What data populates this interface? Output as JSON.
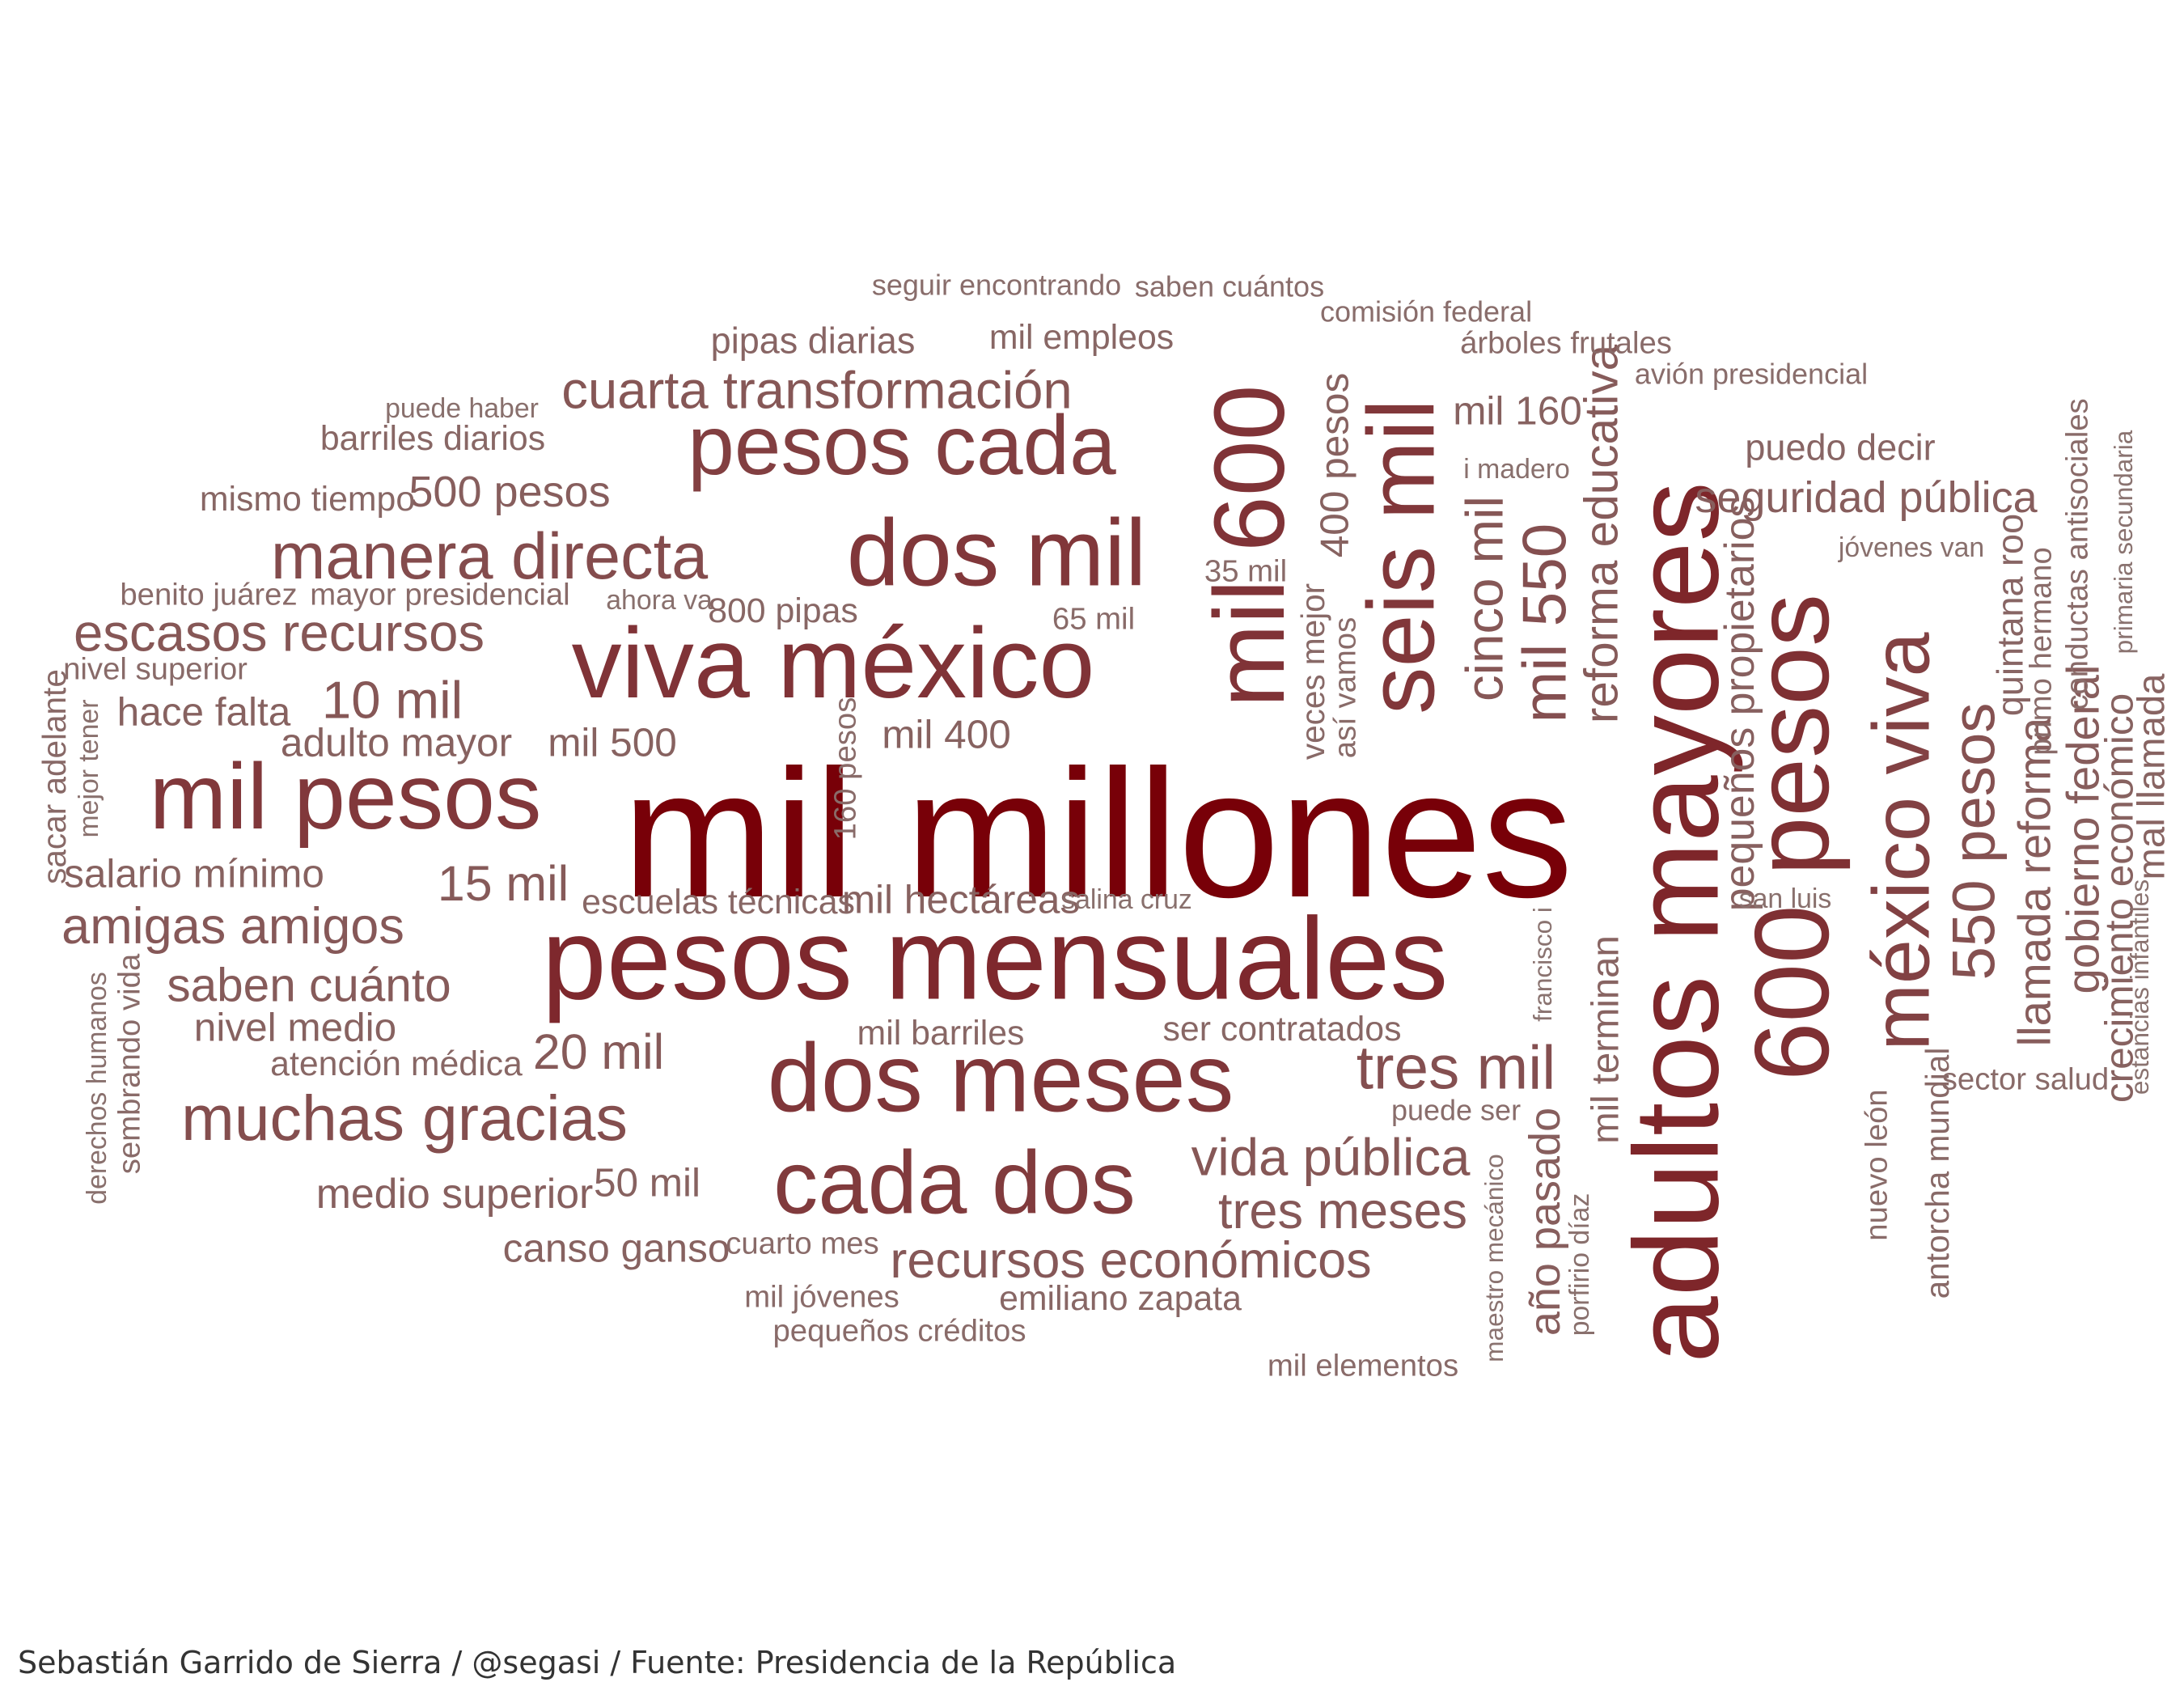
{
  "caption": "Sebastián Garrido de Sierra / @segasi / Fuente: Presidencia de la República",
  "chart_data": {
    "type": "wordcloud",
    "color_scale": {
      "low": "#8a7370",
      "high": "#780008"
    },
    "words": [
      {
        "text": "mil millones",
        "weight": 100,
        "rotated": false
      },
      {
        "text": "adultos mayores",
        "weight": 66,
        "rotated": true
      },
      {
        "text": "pesos mensuales",
        "weight": 64,
        "rotated": false
      },
      {
        "text": "600 pesos",
        "weight": 58,
        "rotated": true
      },
      {
        "text": "viva méxico",
        "weight": 55,
        "rotated": false
      },
      {
        "text": "mil 600",
        "weight": 55,
        "rotated": true
      },
      {
        "text": "dos meses",
        "weight": 53,
        "rotated": false
      },
      {
        "text": "dos mil",
        "weight": 52,
        "rotated": false
      },
      {
        "text": "seis mil",
        "weight": 52,
        "rotated": true
      },
      {
        "text": "mil pesos",
        "weight": 51,
        "rotated": false
      },
      {
        "text": "cada dos",
        "weight": 49,
        "rotated": false
      },
      {
        "text": "pesos cada",
        "weight": 46,
        "rotated": false
      },
      {
        "text": "méxico viva",
        "weight": 44,
        "rotated": true
      },
      {
        "text": "manera directa",
        "weight": 36,
        "rotated": false
      },
      {
        "text": "muchas gracias",
        "weight": 35,
        "rotated": false
      },
      {
        "text": "mil 550",
        "weight": 34,
        "rotated": true
      },
      {
        "text": "tres mil",
        "weight": 34,
        "rotated": false
      },
      {
        "text": "550 pesos",
        "weight": 33,
        "rotated": true
      },
      {
        "text": "cuarta transformación",
        "weight": 29,
        "rotated": false
      },
      {
        "text": "escasos recursos",
        "weight": 29,
        "rotated": false
      },
      {
        "text": "vida pública",
        "weight": 29,
        "rotated": false
      },
      {
        "text": "cinco mil",
        "weight": 29,
        "rotated": true
      },
      {
        "text": "10 mil",
        "weight": 29,
        "rotated": false
      },
      {
        "text": "recursos económicos",
        "weight": 28,
        "rotated": false
      },
      {
        "text": "tres meses",
        "weight": 28,
        "rotated": false
      },
      {
        "text": "amigas amigos",
        "weight": 28,
        "rotated": false
      },
      {
        "text": "20 mil",
        "weight": 27,
        "rotated": false
      },
      {
        "text": "15 mil",
        "weight": 27,
        "rotated": false
      },
      {
        "text": "saben cuánto",
        "weight": 26,
        "rotated": false
      },
      {
        "text": "reforma educativa",
        "weight": 26,
        "rotated": true
      },
      {
        "text": "gobierno federal",
        "weight": 25,
        "rotated": true
      },
      {
        "text": "llamada reforma",
        "weight": 25,
        "rotated": true
      },
      {
        "text": "seguridad pública",
        "weight": 24,
        "rotated": false
      },
      {
        "text": "año pasado",
        "weight": 24,
        "rotated": true
      },
      {
        "text": "500 pesos",
        "weight": 24,
        "rotated": false
      },
      {
        "text": "medio superior",
        "weight": 23,
        "rotated": false
      },
      {
        "text": "pequeños propietarios",
        "weight": 23,
        "rotated": true
      },
      {
        "text": "crecimiento económico",
        "weight": 22,
        "rotated": true
      },
      {
        "text": "hace falta",
        "weight": 22,
        "rotated": false
      },
      {
        "text": "adulto mayor",
        "weight": 22,
        "rotated": false
      },
      {
        "text": "mil 500",
        "weight": 22,
        "rotated": false
      },
      {
        "text": "mil 400",
        "weight": 22,
        "rotated": false
      },
      {
        "text": "salario mínimo",
        "weight": 22,
        "rotated": false
      },
      {
        "text": "nivel medio",
        "weight": 22,
        "rotated": false
      },
      {
        "text": "400 pesos",
        "weight": 22,
        "rotated": true
      },
      {
        "text": "mil 160",
        "weight": 22,
        "rotated": false
      },
      {
        "text": "canso ganso",
        "weight": 22,
        "rotated": false
      },
      {
        "text": "50 mil",
        "weight": 22,
        "rotated": false
      },
      {
        "text": "mil hectáreas",
        "weight": 22,
        "rotated": false
      },
      {
        "text": "mal llamada",
        "weight": 21,
        "rotated": true
      },
      {
        "text": "mil terminan",
        "weight": 21,
        "rotated": true
      },
      {
        "text": "quintana roo",
        "weight": 20,
        "rotated": true
      },
      {
        "text": "puedo decir",
        "weight": 20,
        "rotated": false
      },
      {
        "text": "pipas diarias",
        "weight": 20,
        "rotated": false
      },
      {
        "text": "emiliano zapata",
        "weight": 19,
        "rotated": false
      },
      {
        "text": "mil empleos",
        "weight": 19,
        "rotated": false
      },
      {
        "text": "ser contratados",
        "weight": 19,
        "rotated": false
      },
      {
        "text": "mil barriles",
        "weight": 19,
        "rotated": false
      },
      {
        "text": "escuelas técnicas",
        "weight": 19,
        "rotated": false
      },
      {
        "text": "atención médica",
        "weight": 19,
        "rotated": false
      },
      {
        "text": "mismo tiempo",
        "weight": 19,
        "rotated": false
      },
      {
        "text": "barriles diarios",
        "weight": 19,
        "rotated": false
      },
      {
        "text": "800 pipas",
        "weight": 19,
        "rotated": false
      },
      {
        "text": "antorcha mundial",
        "weight": 18,
        "rotated": true
      },
      {
        "text": "veces mejor",
        "weight": 18,
        "rotated": true
      },
      {
        "text": "sacar adelante",
        "weight": 18,
        "rotated": true
      },
      {
        "text": "sembrando vida",
        "weight": 17,
        "rotated": true
      },
      {
        "text": "conductas antisociales",
        "weight": 17,
        "rotated": true
      },
      {
        "text": "160 pesos",
        "weight": 17,
        "rotated": true
      },
      {
        "text": "así vamos",
        "weight": 17,
        "rotated": true
      },
      {
        "text": "primo hermano",
        "weight": 17,
        "rotated": true
      },
      {
        "text": "nuevo león",
        "weight": 17,
        "rotated": true
      },
      {
        "text": "cuarto mes",
        "weight": 17,
        "rotated": false
      },
      {
        "text": "mil jóvenes",
        "weight": 17,
        "rotated": false
      },
      {
        "text": "mil elementos",
        "weight": 17,
        "rotated": false
      },
      {
        "text": "árboles frutales",
        "weight": 17,
        "rotated": false
      },
      {
        "text": "pequeños créditos",
        "weight": 17,
        "rotated": false
      },
      {
        "text": "sector salud",
        "weight": 17,
        "rotated": false
      },
      {
        "text": "benito juárez",
        "weight": 17,
        "rotated": false
      },
      {
        "text": "mayor presidencial",
        "weight": 17,
        "rotated": false
      },
      {
        "text": "nivel superior",
        "weight": 17,
        "rotated": false
      },
      {
        "text": "35 mil",
        "weight": 17,
        "rotated": false
      },
      {
        "text": "65 mil",
        "weight": 17,
        "rotated": false
      },
      {
        "text": "puede ser",
        "weight": 16,
        "rotated": false
      },
      {
        "text": "comisión federal",
        "weight": 16,
        "rotated": false
      },
      {
        "text": "seguir encontrando",
        "weight": 16,
        "rotated": false
      },
      {
        "text": "saben cuántos",
        "weight": 16,
        "rotated": false
      },
      {
        "text": "avión presidencial",
        "weight": 16,
        "rotated": false
      },
      {
        "text": "porfirio díaz",
        "weight": 15,
        "rotated": true
      },
      {
        "text": "derechos humanos",
        "weight": 15,
        "rotated": true
      },
      {
        "text": "mejor tener",
        "weight": 15,
        "rotated": true
      },
      {
        "text": "jóvenes van",
        "weight": 15,
        "rotated": false
      },
      {
        "text": "san luis",
        "weight": 15,
        "rotated": false
      },
      {
        "text": "ahora va",
        "weight": 15,
        "rotated": false
      },
      {
        "text": "puede haber",
        "weight": 15,
        "rotated": false
      },
      {
        "text": "i madero",
        "weight": 15,
        "rotated": false
      },
      {
        "text": "salina cruz",
        "weight": 15,
        "rotated": false
      },
      {
        "text": "estancias infantiles",
        "weight": 14,
        "rotated": true
      },
      {
        "text": "primaria secundaria",
        "weight": 14,
        "rotated": true
      },
      {
        "text": "maestro mecánico",
        "weight": 14,
        "rotated": true
      },
      {
        "text": "francisco i",
        "weight": 14,
        "rotated": true
      }
    ]
  }
}
